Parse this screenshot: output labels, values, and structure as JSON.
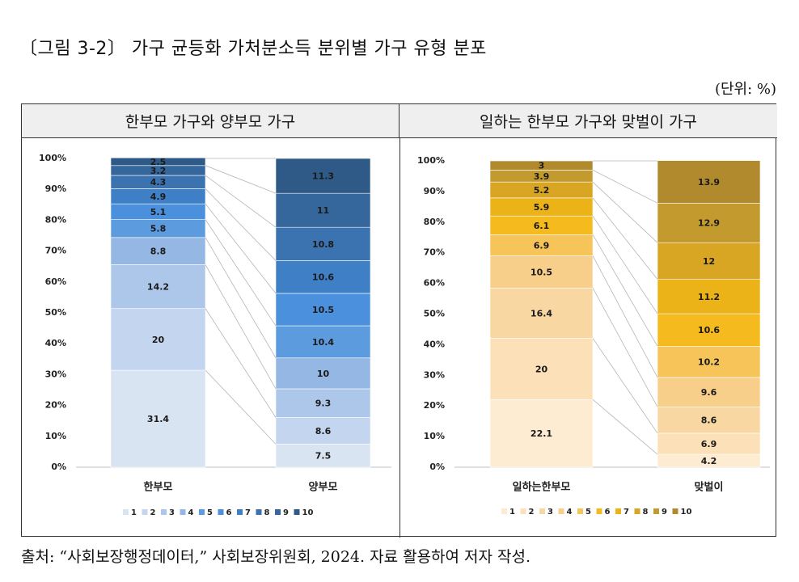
{
  "figure_title": "〔그림 3-2〕 가구 균등화 가처분소득 분위별 가구 유형 분포",
  "unit_label": "(단위: %)",
  "source": "출처: “사회보장행정데이터,” 사회보장위원회, 2024. 자료 활용하여 저자 작성.",
  "chart_data": [
    {
      "type": "bar",
      "stacked": true,
      "title": "한부모 가구와 양부모 가구",
      "categories": [
        "한부모",
        "양부모"
      ],
      "ylim": [
        0,
        100
      ],
      "yticks": [
        "0%",
        "10%",
        "20%",
        "30%",
        "40%",
        "50%",
        "60%",
        "70%",
        "80%",
        "90%",
        "100%"
      ],
      "legend_position": "bottom",
      "series": [
        {
          "name": "1",
          "values": [
            31.4,
            7.5
          ],
          "color": "#d9e4f3"
        },
        {
          "name": "2",
          "values": [
            20,
            8.6
          ],
          "color": "#c4d6ef"
        },
        {
          "name": "3",
          "values": [
            14.2,
            9.3
          ],
          "color": "#adc7ea"
        },
        {
          "name": "4",
          "values": [
            8.8,
            10
          ],
          "color": "#94b7e4"
        },
        {
          "name": "5",
          "values": [
            5.8,
            10.4
          ],
          "color": "#5b9bde"
        },
        {
          "name": "6",
          "values": [
            5.1,
            10.5
          ],
          "color": "#4a90dc"
        },
        {
          "name": "7",
          "values": [
            4.9,
            10.6
          ],
          "color": "#3f7fc6"
        },
        {
          "name": "8",
          "values": [
            4.3,
            10.8
          ],
          "color": "#3b72b0"
        },
        {
          "name": "9",
          "values": [
            3.2,
            11
          ],
          "color": "#35669c"
        },
        {
          "name": "10",
          "values": [
            2.5,
            11.3
          ],
          "color": "#2f5a88"
        }
      ]
    },
    {
      "type": "bar",
      "stacked": true,
      "title": "일하는 한부모 가구와 맞벌이 가구",
      "categories": [
        "일하는한부모",
        "맞벌이"
      ],
      "ylim": [
        0,
        100
      ],
      "yticks": [
        "0%",
        "10%",
        "20%",
        "30%",
        "40%",
        "50%",
        "60%",
        "70%",
        "80%",
        "90%",
        "100%"
      ],
      "legend_position": "bottom",
      "series": [
        {
          "name": "1",
          "values": [
            22.1,
            4.2
          ],
          "color": "#fdebd2"
        },
        {
          "name": "2",
          "values": [
            20,
            6.9
          ],
          "color": "#fbe0b8"
        },
        {
          "name": "3",
          "values": [
            16.4,
            8.6
          ],
          "color": "#f9d7a3"
        },
        {
          "name": "4",
          "values": [
            10.5,
            9.6
          ],
          "color": "#f8cf8a"
        },
        {
          "name": "5",
          "values": [
            6.9,
            10.2
          ],
          "color": "#f7c45a"
        },
        {
          "name": "6",
          "values": [
            6.1,
            10.6
          ],
          "color": "#f5bb1e"
        },
        {
          "name": "7",
          "values": [
            5.9,
            11.2
          ],
          "color": "#ecb319"
        },
        {
          "name": "8",
          "values": [
            5.2,
            12
          ],
          "color": "#d9a623"
        },
        {
          "name": "9",
          "values": [
            3.9,
            12.9
          ],
          "color": "#c39a2e"
        },
        {
          "name": "10",
          "values": [
            3,
            13.9
          ],
          "color": "#b08a2c"
        }
      ]
    }
  ]
}
